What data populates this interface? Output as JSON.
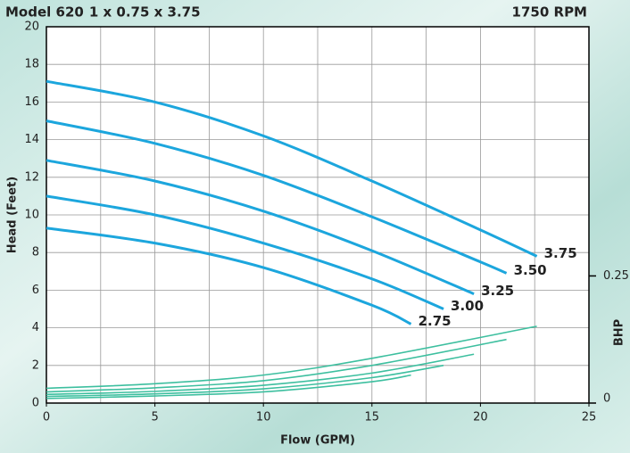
{
  "chart_data": {
    "type": "line",
    "title": "Model 620",
    "subtitle": "1 x 0.75 x 3.75",
    "speed": "1750 RPM",
    "title_color": "#d92b2b",
    "subtitle_color": "#2aaa8a",
    "x_label": "Flow (GPM)",
    "y_label": "Head (Feet)",
    "y2_label": "BHP",
    "xlim": [
      0,
      25
    ],
    "xticks": [
      0,
      5,
      10,
      15,
      20,
      25
    ],
    "x_grid_step": 2.5,
    "ylim": [
      0,
      20
    ],
    "yticks": [
      0,
      2,
      4,
      6,
      8,
      10,
      12,
      14,
      16,
      18,
      20
    ],
    "y2lim": [
      0,
      0.74
    ],
    "y2ticks": [
      0,
      0.25
    ],
    "grid": true,
    "series": [
      {
        "name": "3.75",
        "color": "#1ca6dd",
        "x": [
          0,
          5,
          10,
          15,
          20,
          22.6
        ],
        "values": [
          17.1,
          16.0,
          14.2,
          11.8,
          9.2,
          7.8
        ]
      },
      {
        "name": "3.50",
        "color": "#1ca6dd",
        "x": [
          0,
          5,
          10,
          15,
          20,
          21.2
        ],
        "values": [
          15.0,
          13.8,
          12.1,
          9.9,
          7.5,
          6.9
        ]
      },
      {
        "name": "3.25",
        "color": "#1ca6dd",
        "x": [
          0,
          5,
          10,
          15,
          19.7
        ],
        "values": [
          12.9,
          11.8,
          10.2,
          8.1,
          5.8
        ]
      },
      {
        "name": "3.00",
        "color": "#1ca6dd",
        "x": [
          0,
          5,
          10,
          15,
          18.3
        ],
        "values": [
          11.0,
          10.0,
          8.5,
          6.6,
          5.0
        ]
      },
      {
        "name": "2.75",
        "color": "#1ca6dd",
        "x": [
          0,
          5,
          10,
          15,
          16.8
        ],
        "values": [
          9.3,
          8.5,
          7.2,
          5.2,
          4.2
        ]
      },
      {
        "axis": "y2",
        "color": "#3dbf9f",
        "x": [
          0,
          5,
          10,
          15,
          22.6
        ],
        "values": [
          0.029,
          0.038,
          0.055,
          0.088,
          0.151
        ]
      },
      {
        "axis": "y2",
        "color": "#3dbf9f",
        "x": [
          0,
          5,
          10,
          15,
          21.2
        ],
        "values": [
          0.022,
          0.03,
          0.044,
          0.074,
          0.125
        ]
      },
      {
        "axis": "y2",
        "color": "#3dbf9f",
        "x": [
          0,
          5,
          10,
          15,
          19.7
        ],
        "values": [
          0.017,
          0.023,
          0.035,
          0.059,
          0.096
        ]
      },
      {
        "axis": "y2",
        "color": "#3dbf9f",
        "x": [
          0,
          5,
          10,
          15,
          18.3
        ],
        "values": [
          0.013,
          0.018,
          0.028,
          0.05,
          0.074
        ]
      },
      {
        "axis": "y2",
        "color": "#3dbf9f",
        "x": [
          0,
          5,
          10,
          15,
          16.8
        ],
        "values": [
          0.009,
          0.014,
          0.022,
          0.042,
          0.055
        ]
      }
    ]
  }
}
